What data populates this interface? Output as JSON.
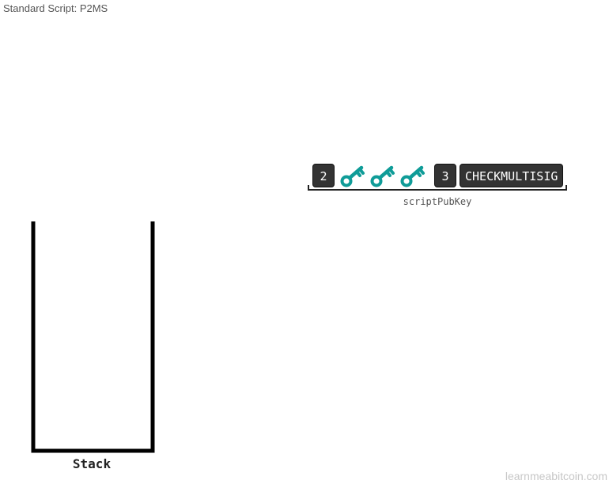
{
  "title": "Standard Script: P2MS",
  "script": {
    "ops": {
      "m": "2",
      "n": "3",
      "checkmultisig": "CHECKMULTISIG"
    },
    "keys": [
      "key-icon",
      "key-icon",
      "key-icon"
    ],
    "key_color": "#0f9c98",
    "label": "scriptPubKey"
  },
  "stack": {
    "label": "Stack",
    "items": []
  },
  "watermark": "learnmeabitcoin.com"
}
